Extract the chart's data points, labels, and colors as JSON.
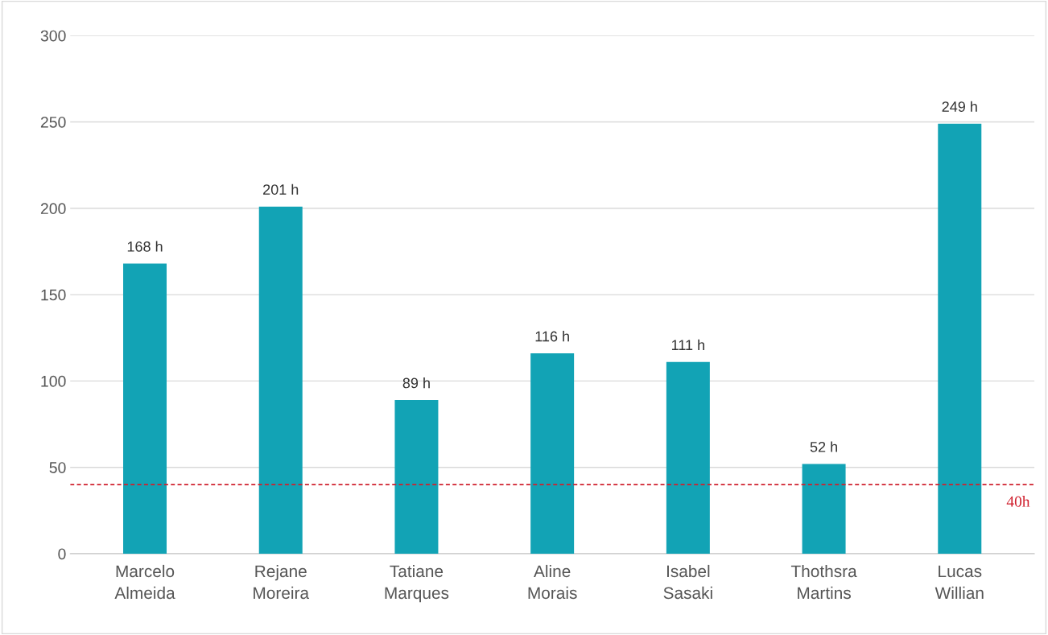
{
  "chart_data": {
    "type": "bar",
    "categories": [
      "Marcelo\nAlmeida",
      "Rejane\nMoreira",
      "Tatiane\nMarques",
      "Aline\nMorais",
      "Isabel\nSasaki",
      "Thothsra\nMartins",
      "Lucas\nWillian"
    ],
    "values": [
      168,
      201,
      89,
      116,
      111,
      52,
      249
    ],
    "value_labels": [
      "168 h",
      "201 h",
      "89 h",
      "116 h",
      "111 h",
      "52 h",
      "249 h"
    ],
    "color": "#12a3b5",
    "ylim": [
      0,
      300
    ],
    "yticks": [
      0,
      50,
      100,
      150,
      200,
      250,
      300
    ],
    "grid": "y",
    "ref_lines": [
      {
        "axis": "y",
        "value": 40,
        "label": "40h",
        "color": "#d0202e",
        "line_style": "dashed"
      }
    ]
  }
}
